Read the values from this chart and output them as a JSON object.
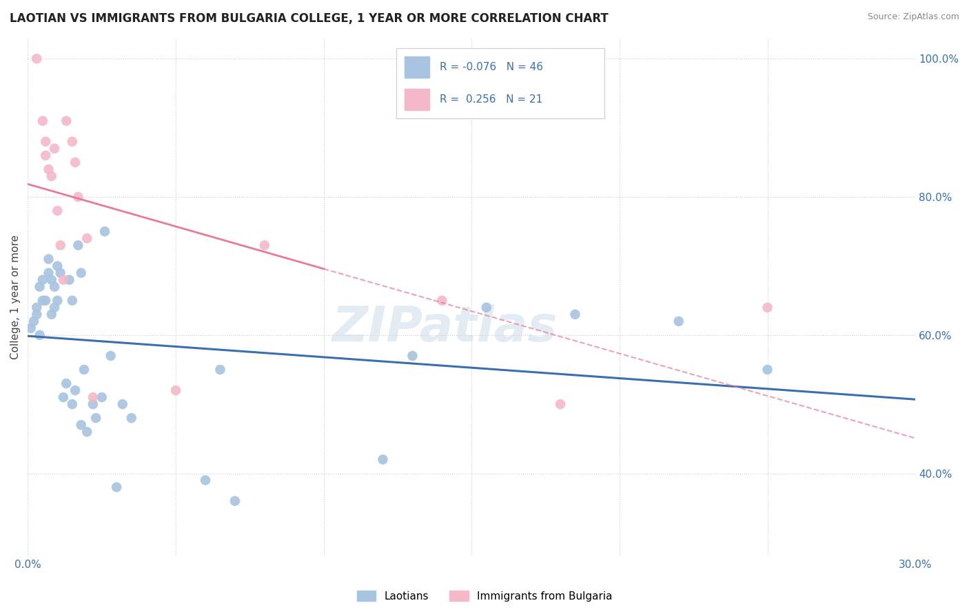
{
  "title": "LAOTIAN VS IMMIGRANTS FROM BULGARIA COLLEGE, 1 YEAR OR MORE CORRELATION CHART",
  "source": "Source: ZipAtlas.com",
  "ylabel": "College, 1 year or more",
  "xlim": [
    0.0,
    0.3
  ],
  "ylim": [
    0.28,
    1.03
  ],
  "xtick_pos": [
    0.0,
    0.05,
    0.1,
    0.15,
    0.2,
    0.25,
    0.3
  ],
  "xtick_labels": [
    "0.0%",
    "",
    "",
    "",
    "",
    "",
    "30.0%"
  ],
  "ytick_positions_right": [
    1.0,
    0.8,
    0.6,
    0.4
  ],
  "ytick_labels_right": [
    "100.0%",
    "80.0%",
    "60.0%",
    "40.0%"
  ],
  "legend_labels": [
    "Laotians",
    "Immigrants from Bulgaria"
  ],
  "R_laotian": -0.076,
  "N_laotian": 46,
  "R_bulgaria": 0.256,
  "N_bulgaria": 21,
  "color_laotian": "#a8c4e0",
  "color_bulgaria": "#f4b8c8",
  "trendline_color_laotian": "#3a6fad",
  "trendline_color_bulgaria": "#e87a95",
  "watermark": "ZIPatlas",
  "background_color": "#ffffff",
  "grid_color": "#cccccc",
  "laotian_x": [
    0.001,
    0.002,
    0.003,
    0.003,
    0.004,
    0.004,
    0.005,
    0.005,
    0.006,
    0.007,
    0.007,
    0.008,
    0.008,
    0.009,
    0.009,
    0.01,
    0.01,
    0.011,
    0.012,
    0.013,
    0.014,
    0.015,
    0.015,
    0.016,
    0.017,
    0.018,
    0.018,
    0.019,
    0.02,
    0.022,
    0.023,
    0.025,
    0.026,
    0.028,
    0.03,
    0.032,
    0.035,
    0.06,
    0.065,
    0.07,
    0.12,
    0.13,
    0.155,
    0.185,
    0.22,
    0.25
  ],
  "laotian_y": [
    0.61,
    0.62,
    0.63,
    0.64,
    0.6,
    0.67,
    0.68,
    0.65,
    0.65,
    0.69,
    0.71,
    0.63,
    0.68,
    0.64,
    0.67,
    0.7,
    0.65,
    0.69,
    0.51,
    0.53,
    0.68,
    0.65,
    0.5,
    0.52,
    0.73,
    0.47,
    0.69,
    0.55,
    0.46,
    0.5,
    0.48,
    0.51,
    0.75,
    0.57,
    0.38,
    0.5,
    0.48,
    0.39,
    0.55,
    0.36,
    0.42,
    0.57,
    0.64,
    0.63,
    0.62,
    0.55
  ],
  "bulgaria_x": [
    0.003,
    0.005,
    0.006,
    0.006,
    0.007,
    0.008,
    0.009,
    0.01,
    0.011,
    0.012,
    0.013,
    0.015,
    0.016,
    0.017,
    0.02,
    0.022,
    0.05,
    0.08,
    0.14,
    0.18,
    0.25
  ],
  "bulgaria_y": [
    1.0,
    0.91,
    0.88,
    0.86,
    0.84,
    0.83,
    0.87,
    0.78,
    0.73,
    0.68,
    0.91,
    0.88,
    0.85,
    0.8,
    0.74,
    0.51,
    0.52,
    0.73,
    0.65,
    0.5,
    0.64
  ]
}
